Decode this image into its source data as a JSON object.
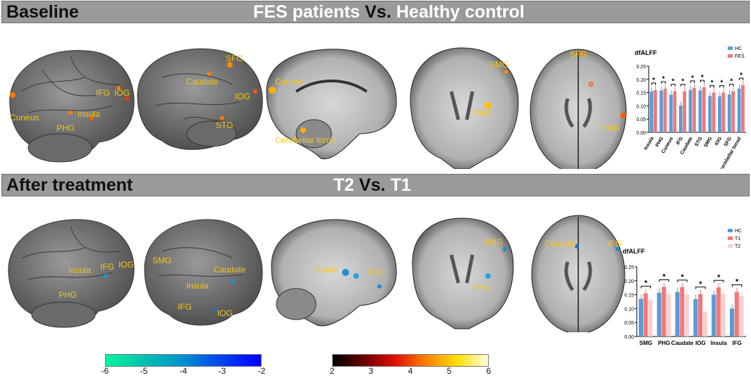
{
  "baseline": {
    "label": "Baseline",
    "group_a": "FES patients",
    "vs": "Vs.",
    "group_b": "Healthy control",
    "brain_labels": {
      "lateral": [
        "Cuneus",
        "PHG",
        "Insula",
        "IFG",
        "IOG"
      ],
      "medial": [
        "SFG",
        "Caudate",
        "IOG",
        "STG"
      ],
      "sagittal": [
        "Cuneus",
        "Cerebellar tonsil"
      ],
      "coronal": [
        "SMG",
        "PHG"
      ],
      "axial": [
        "SFG",
        "SMG"
      ]
    }
  },
  "treatment": {
    "label": "After treatment",
    "group_a": "T2",
    "vs": "Vs.",
    "group_b": "T1",
    "brain_labels": {
      "lateral": [
        "Insula",
        "IFG",
        "IOG",
        "PHG"
      ],
      "medial": [
        "SMG",
        "Caudate",
        "Insula",
        "IFG",
        "IOG"
      ],
      "sagittal": [
        "Insula",
        "IOG"
      ],
      "coronal": [
        "SMG",
        "PHG"
      ],
      "axial": [
        "Caudate",
        "IFG"
      ]
    }
  },
  "chart_data": [
    {
      "type": "bar",
      "ylabel": "dfALFF",
      "categories": [
        "Insula",
        "PHG",
        "Cuneus",
        "IFG",
        "Caudate",
        "STG",
        "SMG",
        "IOG",
        "SFG",
        "cerebellar tonsil"
      ],
      "series": [
        {
          "name": "HC",
          "color": "#5b9bd5",
          "values": [
            0.155,
            0.158,
            0.142,
            0.101,
            0.16,
            0.158,
            0.137,
            0.136,
            0.143,
            0.165
          ]
        },
        {
          "name": "FES",
          "color": "#f07878",
          "values": [
            0.16,
            0.165,
            0.155,
            0.155,
            0.168,
            0.17,
            0.15,
            0.15,
            0.155,
            0.178
          ]
        }
      ],
      "ylim": [
        0,
        0.25
      ],
      "yticks": [
        "0.00",
        "0.05",
        "0.10",
        "0.15",
        "0.20",
        "0.25"
      ],
      "significance": "*",
      "legend_position": "top-right"
    },
    {
      "type": "bar",
      "ylabel": "dfALFF",
      "categories": [
        "SMG",
        "PHG",
        "Caudate",
        "IOG",
        "Insula",
        "IFG"
      ],
      "series": [
        {
          "name": "HC",
          "color": "#5b9bd5",
          "values": [
            0.135,
            0.157,
            0.16,
            0.134,
            0.15,
            0.1
          ]
        },
        {
          "name": "T1",
          "color": "#f07878",
          "values": [
            0.155,
            0.178,
            0.177,
            0.152,
            0.176,
            0.16
          ]
        },
        {
          "name": "T2",
          "color": "#f8d0cc",
          "values": [
            0.13,
            0.15,
            0.15,
            0.087,
            0.152,
            0.145
          ]
        }
      ],
      "ylim": [
        0,
        0.25
      ],
      "yticks": [
        "0.00",
        "0.05",
        "0.10",
        "0.15",
        "0.20",
        "0.25"
      ],
      "significance": "*",
      "legend_position": "top-right"
    }
  ],
  "colorbars": {
    "cool": {
      "ticks": [
        "-6",
        "-5",
        "-4",
        "-3",
        "-2"
      ]
    },
    "hot": {
      "ticks": [
        "2",
        "3",
        "4",
        "5",
        "6"
      ]
    }
  }
}
